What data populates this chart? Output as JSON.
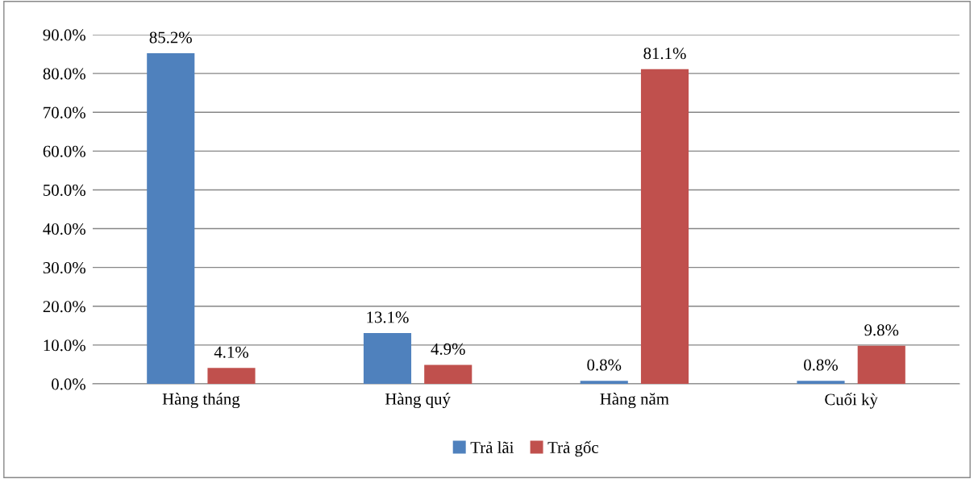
{
  "chart_data": {
    "type": "bar",
    "categories": [
      "Hàng tháng",
      "Hàng quý",
      "Hàng năm",
      "Cuối kỳ"
    ],
    "series": [
      {
        "name": "Trả lãi",
        "color": "#4f81bd",
        "values": [
          85.2,
          13.1,
          0.8,
          0.8
        ],
        "value_labels": [
          "85.2%",
          "13.1%",
          "0.8%",
          "0.8%"
        ]
      },
      {
        "name": "Trả gốc",
        "color": "#c0504d",
        "values": [
          4.1,
          4.9,
          81.1,
          9.8
        ],
        "value_labels": [
          "4.1%",
          "4.9%",
          "81.1%",
          "9.8%"
        ]
      }
    ],
    "ylim": [
      0,
      90
    ],
    "yticks": [
      {
        "value": 0,
        "label": "0.0%"
      },
      {
        "value": 10,
        "label": "10.0%"
      },
      {
        "value": 20,
        "label": "20.0%"
      },
      {
        "value": 30,
        "label": "30.0%"
      },
      {
        "value": 40,
        "label": "40.0%"
      },
      {
        "value": 50,
        "label": "50.0%"
      },
      {
        "value": 60,
        "label": "60.0%"
      },
      {
        "value": 70,
        "label": "70.0%"
      },
      {
        "value": 80,
        "label": "80.0%"
      },
      {
        "value": 90,
        "label": "90.0%"
      }
    ],
    "grid": "y",
    "legend": "bottom"
  }
}
